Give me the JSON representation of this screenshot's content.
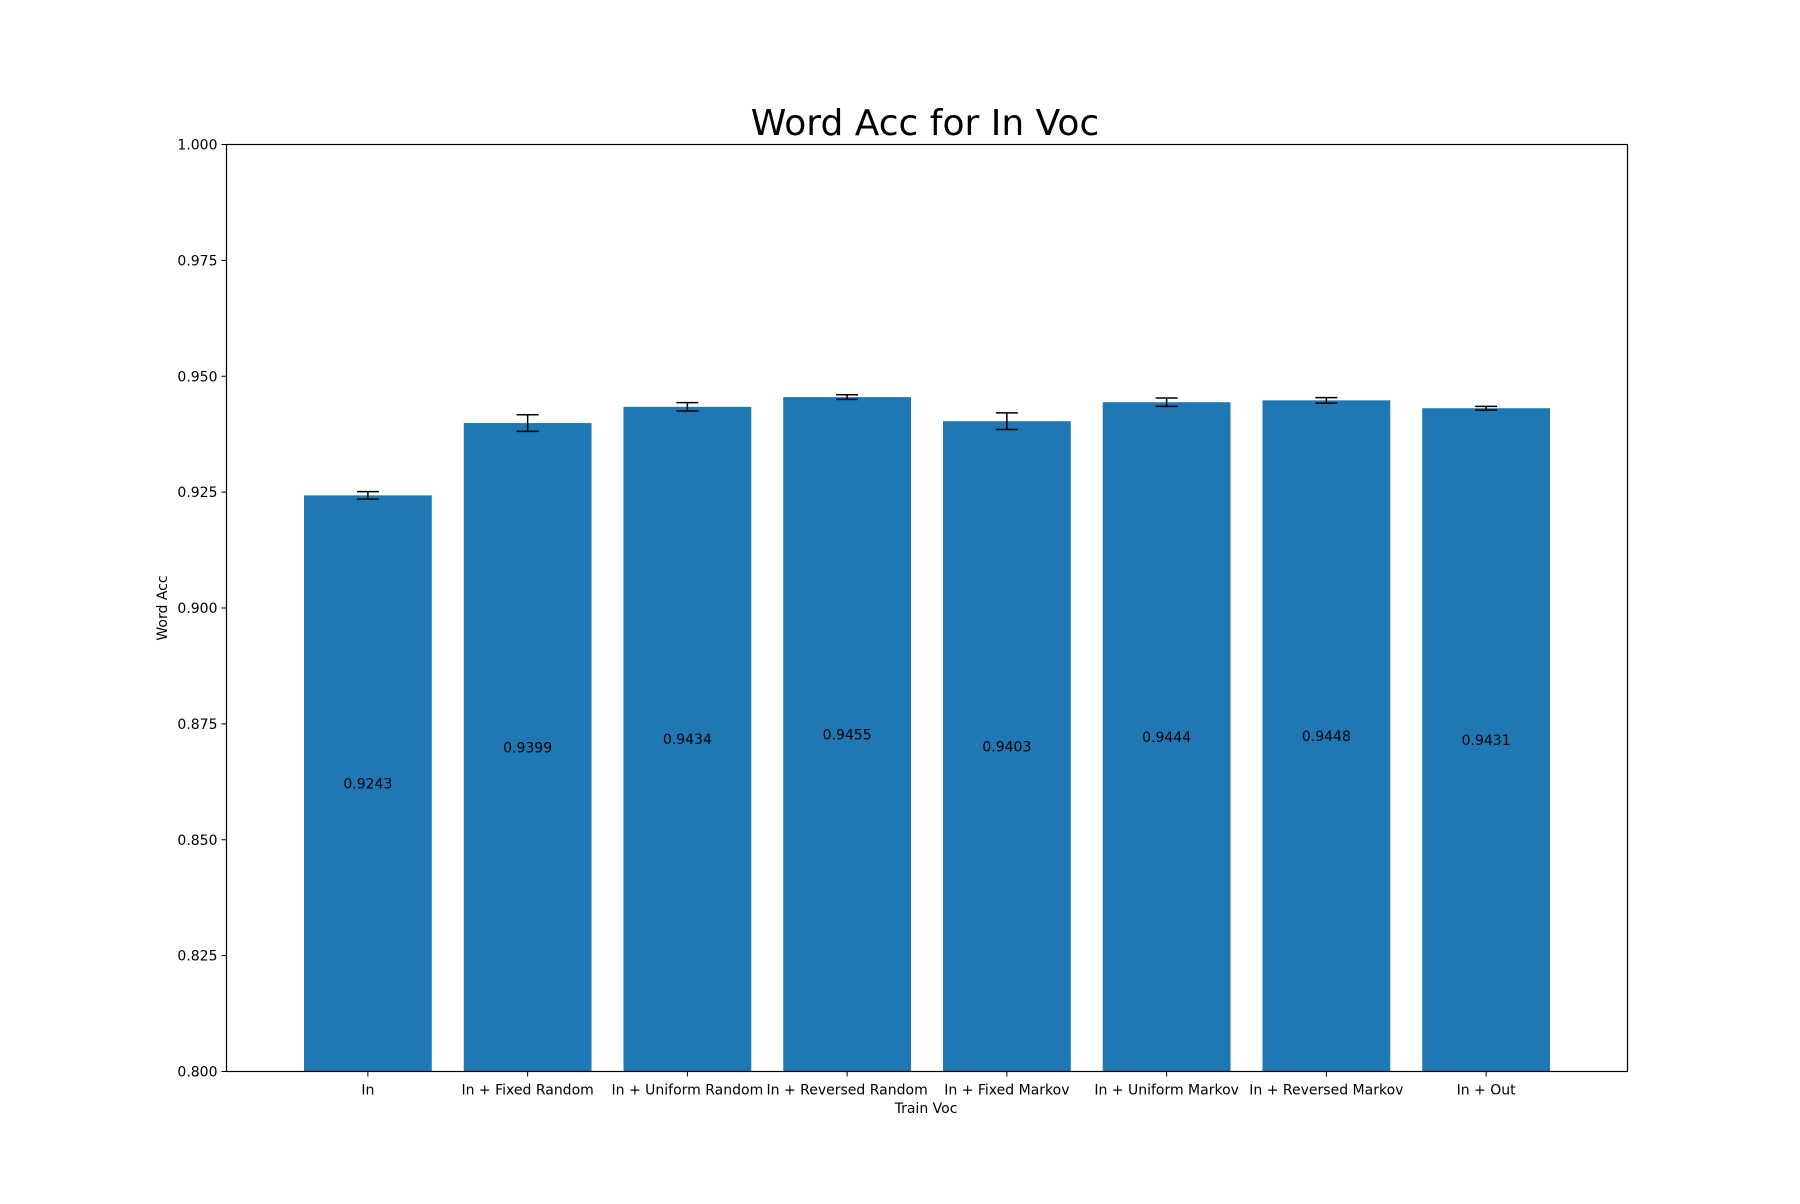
{
  "chart_data": {
    "type": "bar",
    "title": "Word Acc for In Voc",
    "xlabel": "Train Voc",
    "ylabel": "Word Acc",
    "ylim": [
      0.8,
      1.0
    ],
    "yticks": [
      "0.800",
      "0.825",
      "0.850",
      "0.875",
      "0.900",
      "0.925",
      "0.950",
      "0.975",
      "1.000"
    ],
    "categories": [
      "In",
      "In + Fixed Random",
      "In + Uniform Random",
      "In + Reversed Random",
      "In + Fixed Markov",
      "In + Uniform Markov",
      "In + Reversed Markov",
      "In + Out"
    ],
    "values": [
      0.9243,
      0.9399,
      0.9434,
      0.9455,
      0.9403,
      0.9444,
      0.9448,
      0.9431
    ],
    "value_labels": [
      "0.9243",
      "0.9399",
      "0.9434",
      "0.9455",
      "0.9403",
      "0.9444",
      "0.9448",
      "0.9431"
    ],
    "errors": [
      0.0008,
      0.0018,
      0.0009,
      0.0005,
      0.0018,
      0.0009,
      0.0006,
      0.0004
    ],
    "bar_color": "#1f77b4",
    "grid": false,
    "legend": "none"
  }
}
